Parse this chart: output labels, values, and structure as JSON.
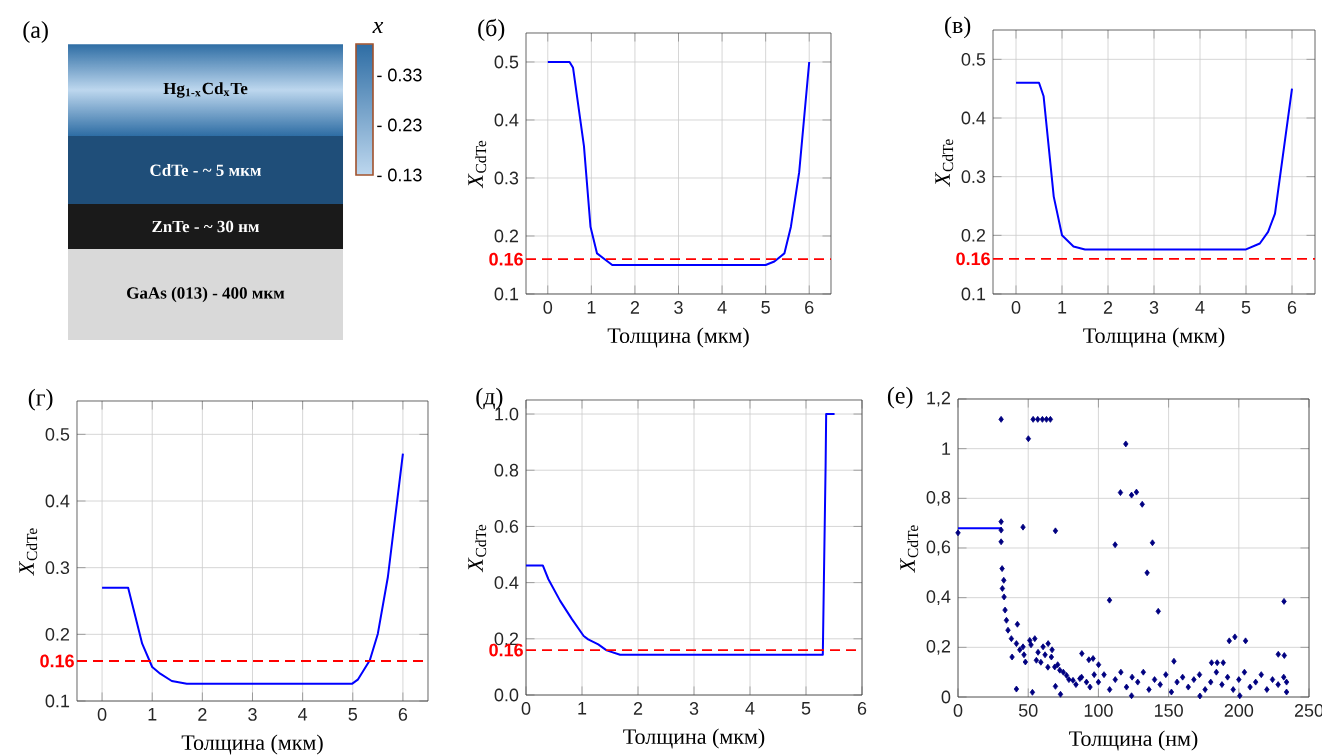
{
  "chart_data": [
    {
      "type": "other",
      "title": "(a)",
      "clabel": "x",
      "annotations": [
        "Hg$_{1-x}$Cd$_{x}$Te",
        "CdTe  -   ~ 5 мкм",
        "ZnTe  -   ~ 30 нм",
        "GaAs (013)  -   400 мкм",
        "- 0.33",
        "- 0.23",
        "- 0.13"
      ]
    },
    {
      "type": "line",
      "title": "(б)",
      "xlabel": "Толщина (мкм)",
      "ylabel": "*X*$_{CdTe}$",
      "color": "#0000ff",
      "grid": true,
      "x": [
        0,
        0.5,
        0.58,
        0.83,
        0.98,
        1.13,
        1.48,
        5.0,
        5.2,
        5.43,
        5.58,
        5.77,
        6.0
      ],
      "values": [
        0.5,
        0.5,
        0.49,
        0.355,
        0.216,
        0.17,
        0.15,
        0.15,
        0.156,
        0.17,
        0.216,
        0.31,
        0.5
      ],
      "xlim": [
        -0.5,
        6.5
      ],
      "ylim": [
        0.1,
        0.55
      ],
      "xticks": [
        0,
        1,
        2,
        3,
        4,
        5,
        6
      ],
      "yticks": [
        0.1,
        0.2,
        0.3,
        0.4,
        0.5
      ],
      "ref_lines": [
        {
          "axis": "y",
          "value": 0.16,
          "label": "0.16",
          "color": "#ff0000",
          "line_style": "dashed"
        }
      ]
    },
    {
      "type": "line",
      "title": "(в)",
      "xlabel": "Толщина (мкм)",
      "ylabel": "*X*$_{CdTe}$",
      "color": "#0000ff",
      "grid": true,
      "x": [
        0,
        0.5,
        0.6,
        0.82,
        1.0,
        1.25,
        1.5,
        5.0,
        5.3,
        5.48,
        5.63,
        6.0
      ],
      "values": [
        0.46,
        0.46,
        0.437,
        0.266,
        0.2,
        0.181,
        0.176,
        0.176,
        0.186,
        0.206,
        0.237,
        0.45
      ],
      "xlim": [
        -0.5,
        6.5
      ],
      "ylim": [
        0.1,
        0.55
      ],
      "xticks": [
        0,
        1,
        2,
        3,
        4,
        5,
        6
      ],
      "yticks": [
        0.1,
        0.2,
        0.3,
        0.4,
        0.5
      ],
      "ref_lines": [
        {
          "axis": "y",
          "value": 0.16,
          "label": "0.16",
          "color": "#ff0000",
          "line_style": "dashed"
        }
      ]
    },
    {
      "type": "line",
      "title": "(г)",
      "xlabel": "Толщина (мкм)",
      "ylabel": "*X*$_{CdTe}$",
      "color": "#0000ff",
      "grid": true,
      "x": [
        0,
        0.52,
        0.8,
        1.0,
        1.16,
        1.39,
        1.69,
        4.99,
        5.1,
        5.34,
        5.5,
        5.7,
        6.0
      ],
      "values": [
        0.27,
        0.27,
        0.186,
        0.151,
        0.141,
        0.13,
        0.126,
        0.126,
        0.132,
        0.161,
        0.201,
        0.286,
        0.471
      ],
      "xlim": [
        -0.5,
        6.5
      ],
      "ylim": [
        0.1,
        0.55
      ],
      "xticks": [
        0,
        1,
        2,
        3,
        4,
        5,
        6
      ],
      "yticks": [
        0.1,
        0.2,
        0.3,
        0.4,
        0.5
      ],
      "ref_lines": [
        {
          "axis": "y",
          "value": 0.16,
          "label": "0.16",
          "color": "#ff0000",
          "line_style": "dashed"
        }
      ]
    },
    {
      "type": "line",
      "title": "(д)",
      "xlabel": "Толщина (мкм)",
      "ylabel": "*X*$_{CdTe}$",
      "color": "#0000ff",
      "grid": true,
      "x": [
        0,
        0.3,
        0.4,
        0.61,
        0.82,
        1.03,
        1.11,
        1.29,
        1.44,
        1.68,
        5.3,
        5.32,
        5.35,
        5.36,
        5.51
      ],
      "values": [
        0.461,
        0.461,
        0.412,
        0.335,
        0.27,
        0.21,
        0.198,
        0.18,
        0.159,
        0.143,
        0.143,
        0.418,
        0.816,
        1.0,
        1.0
      ],
      "xlim": [
        0,
        6
      ],
      "ylim": [
        0,
        1.05
      ],
      "xticks": [
        0,
        1,
        2,
        3,
        4,
        5,
        6
      ],
      "yticks": [
        {
          "value": 0,
          "label": "0.0"
        },
        0.2,
        0.4,
        0.6,
        0.8,
        {
          "value": 1,
          "label": "1.0"
        }
      ],
      "ref_lines": [
        {
          "axis": "y",
          "value": 0.16,
          "label": "0.16",
          "color": "#ff0000",
          "line_style": "dashed"
        }
      ]
    },
    {
      "type": "scatter",
      "title": "(e)",
      "xlabel": "Толщина (нм)",
      "ylabel": "*X*$_{CdTe}$",
      "grid": true,
      "xlim": [
        0,
        250
      ],
      "ylim": [
        0,
        1.2
      ],
      "xticks": [
        0,
        50,
        100,
        150,
        200,
        250
      ],
      "yticks": [
        0,
        {
          "value": 0.2,
          "label": "0,2"
        },
        {
          "value": 0.4,
          "label": "0,4"
        },
        {
          "value": 0.6,
          "label": "0,6"
        },
        {
          "value": 0.8,
          "label": "0,8"
        },
        1,
        {
          "value": 1.2,
          "label": "1,2"
        }
      ],
      "series": [
        {
          "type": "line",
          "color": "#0000ff",
          "x": [
            0,
            31
          ],
          "values": [
            0.68,
            0.68
          ]
        },
        {
          "type": "scatter",
          "color": "#000080",
          "marker": "diamond",
          "x": [
            0,
            30.7,
            30.7,
            30.7,
            30.7,
            46.3,
            50.1,
            53.5,
            56.8,
            60.1,
            63,
            65.8,
            69.4,
            119.5,
            115.7,
            123.6,
            127.1,
            131.2,
            111.9,
            138.5,
            134.7,
            107.9,
            142.6,
            232.2,
            193.2,
            197.2,
            204.8,
            228.1,
            232.4,
            153.8,
            180.6,
            184.6,
            188.9,
            88.2,
            93.2,
            96.2,
            100.1,
            41.6,
            53,
            69.4,
            73,
            123.6,
            200.7,
            172.3,
            31.4,
            31.6,
            32.6,
            32.8,
            33.5,
            34.5,
            35.6,
            38,
            38.5,
            42.3,
            41.6,
            46.3,
            48,
            51.1,
            54.7,
            55.8,
            60.6,
            64.2,
            66.5,
            68.9,
            72.5,
            77.3,
            81.9,
            86.8,
            91.5,
            44,
            47,
            52,
            57,
            62,
            67,
            59,
            64,
            71,
            75,
            79,
            84,
            88,
            94,
            97,
            100,
            104,
            108,
            112,
            116,
            120,
            124,
            128,
            132,
            136,
            140,
            144,
            148,
            152,
            156,
            160,
            164,
            168,
            172,
            176,
            180,
            184,
            188,
            192,
            196,
            200,
            204,
            208,
            212,
            216,
            220,
            224,
            228,
            232,
            234,
            234
          ],
          "values": [
            0.661,
            1.118,
            0.706,
            0.625,
            0.672,
            0.684,
            1.04,
            1.118,
            1.118,
            1.118,
            1.118,
            1.118,
            0.669,
            1.019,
            0.823,
            0.813,
            0.825,
            0.776,
            0.613,
            0.621,
            0.5,
            0.39,
            0.345,
            0.385,
            0.226,
            0.242,
            0.226,
            0.172,
            0.167,
            0.144,
            0.138,
            0.138,
            0.138,
            0.175,
            0.15,
            0.155,
            0.13,
            0.032,
            0.019,
            0.043,
            0.011,
            0.005,
            0.005,
            0.004,
            0.517,
            0.437,
            0.47,
            0.403,
            0.35,
            0.309,
            0.269,
            0.235,
            0.161,
            0.293,
            0.215,
            0.202,
            0.141,
            0.228,
            0.235,
            0.148,
            0.202,
            0.215,
            0.161,
            0.121,
            0.108,
            0.087,
            0.067,
            0.074,
            0.06,
            0.19,
            0.17,
            0.21,
            0.18,
            0.17,
            0.19,
            0.14,
            0.12,
            0.13,
            0.1,
            0.07,
            0.05,
            0.08,
            0.04,
            0.09,
            0.06,
            0.09,
            0.03,
            0.07,
            0.1,
            0.04,
            0.08,
            0.06,
            0.1,
            0.03,
            0.07,
            0.05,
            0.09,
            0.02,
            0.06,
            0.08,
            0.04,
            0.07,
            0.09,
            0.03,
            0.06,
            0.1,
            0.05,
            0.08,
            0.03,
            0.07,
            0.1,
            0.04,
            0.06,
            0.09,
            0.03,
            0.07,
            0.05,
            0.08,
            0.02,
            0.06
          ]
        }
      ]
    }
  ]
}
